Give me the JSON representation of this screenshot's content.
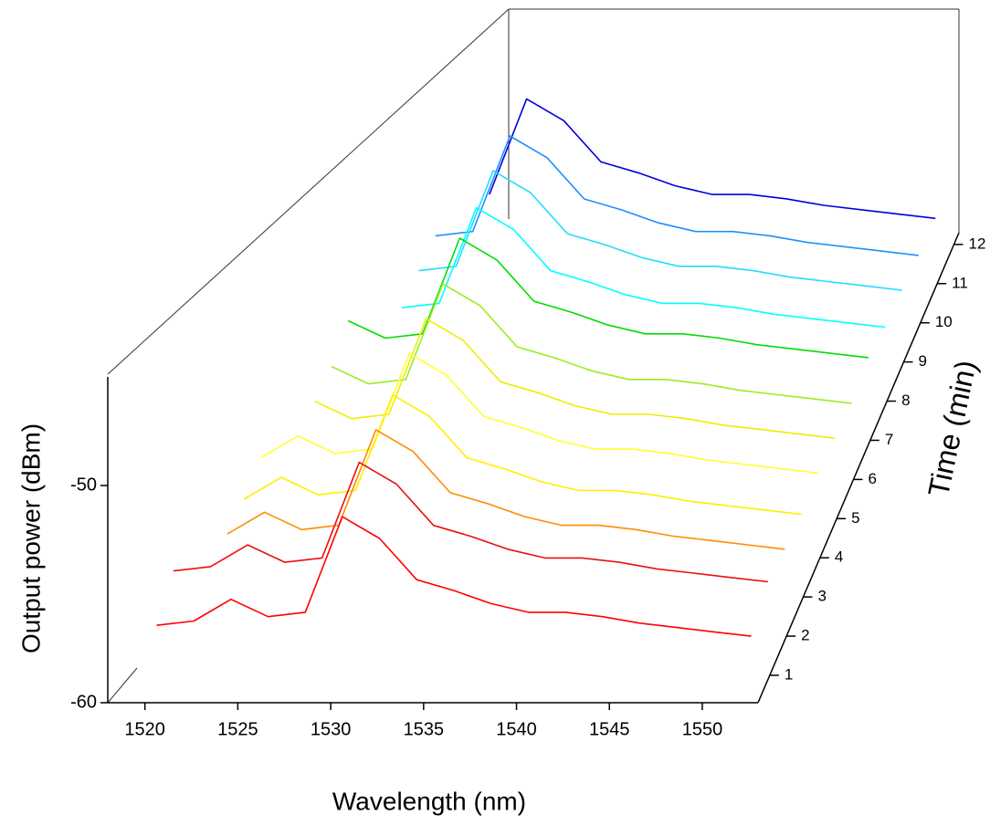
{
  "chart_data": {
    "type": "waterfall",
    "xlabel": "Wavelength (nm)",
    "ylabel": "Output power (dBm)",
    "zlabel": "Time (min)",
    "x": [
      1520,
      1522,
      1524,
      1526,
      1528,
      1530,
      1532,
      1534,
      1536,
      1538,
      1540,
      1542,
      1544,
      1546,
      1548,
      1550,
      1552
    ],
    "xlim": [
      1518,
      1553
    ],
    "xticks": [
      1520,
      1525,
      1530,
      1535,
      1540,
      1545,
      1550
    ],
    "ylim": [
      -60,
      -45
    ],
    "yticks": [
      -60,
      -50
    ],
    "zlim": [
      0.3,
      12.3
    ],
    "zticks": [
      1,
      2,
      3,
      4,
      5,
      6,
      7,
      8,
      9,
      10,
      11,
      12
    ],
    "z": [
      1,
      2,
      3,
      4,
      5,
      6,
      7,
      8,
      9,
      10,
      11,
      12
    ],
    "series": [
      {
        "color": "#ff0000",
        "values": [
          -57.7,
          -57.5,
          -56.5,
          -57.3,
          -57.1,
          -52.7,
          -53.7,
          -55.6,
          -56.1,
          -56.7,
          -57.1,
          -57.1,
          -57.3,
          -57.6,
          -57.8,
          -58.0,
          -58.2
        ]
      },
      {
        "color": "#e81010",
        "values": [
          -57.0,
          -56.8,
          -55.8,
          -56.6,
          -56.4,
          -52.0,
          -53.0,
          -54.9,
          -55.4,
          -56.0,
          -56.4,
          -56.4,
          -56.6,
          -56.9,
          -57.1,
          -57.3,
          -57.5
        ]
      },
      {
        "color": "#ff8c00",
        "values": [
          null,
          -57.1,
          -56.1,
          -56.9,
          -56.7,
          -52.3,
          -53.3,
          -55.2,
          -55.7,
          -56.3,
          -56.7,
          -56.7,
          -56.9,
          -57.2,
          -57.4,
          -57.6,
          -57.8
        ]
      },
      {
        "color": "#ffee00",
        "values": [
          null,
          -57.3,
          -56.3,
          -57.1,
          -56.9,
          -52.5,
          -53.5,
          -55.4,
          -55.9,
          -56.5,
          -56.9,
          -56.9,
          -57.1,
          -57.4,
          -57.6,
          -57.8,
          -58.0
        ]
      },
      {
        "color": "#ffff33",
        "values": [
          null,
          -57.2,
          -56.2,
          -57.0,
          -56.8,
          -52.4,
          -53.4,
          -55.3,
          -55.8,
          -56.4,
          -56.8,
          -56.8,
          -57.0,
          -57.3,
          -57.5,
          -57.7,
          -57.9
        ]
      },
      {
        "color": "#eeee00",
        "values": [
          null,
          null,
          -56.4,
          -57.2,
          -57.0,
          -52.6,
          -53.6,
          -55.5,
          -56.0,
          -56.6,
          -57.0,
          -57.0,
          -57.2,
          -57.5,
          -57.7,
          -57.9,
          -58.1
        ]
      },
      {
        "color": "#99ee22",
        "values": [
          null,
          null,
          -56.6,
          -57.4,
          -57.2,
          -52.8,
          -53.8,
          -55.7,
          -56.2,
          -56.8,
          -57.2,
          -57.2,
          -57.4,
          -57.7,
          -57.9,
          -58.1,
          -58.3
        ]
      },
      {
        "color": "#00dd00",
        "values": [
          null,
          null,
          -56.3,
          -57.1,
          -56.9,
          -52.5,
          -53.5,
          -55.4,
          -55.9,
          -56.5,
          -56.9,
          -56.9,
          -57.1,
          -57.4,
          -57.6,
          -57.8,
          -58.0
        ]
      },
      {
        "color": "#00ffff",
        "values": [
          null,
          null,
          null,
          -57.5,
          -57.3,
          -52.9,
          -53.9,
          -55.8,
          -56.3,
          -56.9,
          -57.3,
          -57.3,
          -57.5,
          -57.8,
          -58.0,
          -58.2,
          -58.4
        ]
      },
      {
        "color": "#22ddff",
        "values": [
          null,
          null,
          null,
          -57.6,
          -57.4,
          -53.0,
          -54.0,
          -55.9,
          -56.4,
          -57.0,
          -57.4,
          -57.4,
          -57.6,
          -57.9,
          -58.1,
          -58.3,
          -58.5
        ]
      },
      {
        "color": "#1e90ff",
        "values": [
          null,
          null,
          null,
          -57.8,
          -57.6,
          -53.2,
          -54.2,
          -56.1,
          -56.6,
          -57.2,
          -57.6,
          -57.6,
          -57.8,
          -58.1,
          -58.3,
          -58.5,
          -58.7
        ]
      },
      {
        "color": "#0000dd",
        "values": [
          null,
          null,
          null,
          null,
          -57.7,
          -53.3,
          -54.3,
          -56.2,
          -56.7,
          -57.3,
          -57.7,
          -57.7,
          -57.9,
          -58.2,
          -58.4,
          -58.6,
          -58.8
        ]
      }
    ]
  }
}
